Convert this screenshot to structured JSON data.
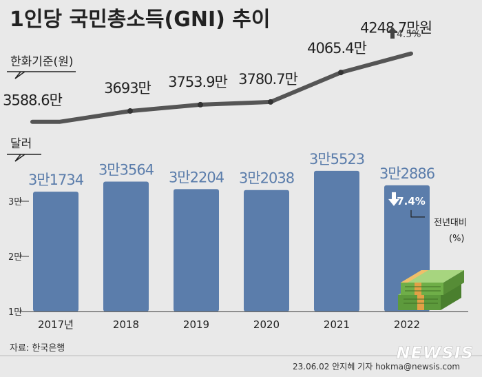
{
  "title": "1인당 국민총소득(GNI) 추이",
  "colors": {
    "background": "#e9e9e9",
    "text": "#222222",
    "line": "#555555",
    "bar": "#5b7dab",
    "bar_label": "#5b7dab",
    "badge": "#5b7dab"
  },
  "chart_data": [
    {
      "type": "line",
      "tag_label": "한화기준(원)",
      "categories": [
        "2017년",
        "2018",
        "2019",
        "2020",
        "2021",
        "2022"
      ],
      "values": [
        3588.6,
        3693,
        3753.9,
        3780.7,
        4065.4,
        4248.7
      ],
      "value_labels": [
        "3588.6만",
        "3693만",
        "3753.9만",
        "3780.7만",
        "4065.4만",
        "4248.7만원"
      ],
      "change_label": "4.5%",
      "change_direction": "up"
    },
    {
      "type": "bar",
      "tag_label": "달러",
      "categories": [
        "2017년",
        "2018",
        "2019",
        "2020",
        "2021",
        "2022"
      ],
      "values": [
        31734,
        33564,
        32204,
        32038,
        35523,
        32886
      ],
      "value_labels": [
        "3만1734",
        "3만3564",
        "3만2204",
        "3만2038",
        "3만5523",
        "3만2886"
      ],
      "yticks": [
        10000,
        20000,
        30000
      ],
      "ytick_labels": [
        "1만",
        "2만",
        "3만"
      ],
      "ylim": [
        10000,
        40000
      ],
      "change_label": "7.4%",
      "change_direction": "down",
      "change_note": [
        "전년대비",
        "(%)"
      ]
    }
  ],
  "footer": {
    "source": "자료: 한국은행",
    "credit": "23.06.02 안지혜 기자 hokma@newsis.com",
    "logo": "NEWSIS"
  },
  "icons": {
    "money": "money-stack-icon",
    "up": "arrow-up-icon",
    "down": "arrow-down-icon"
  }
}
